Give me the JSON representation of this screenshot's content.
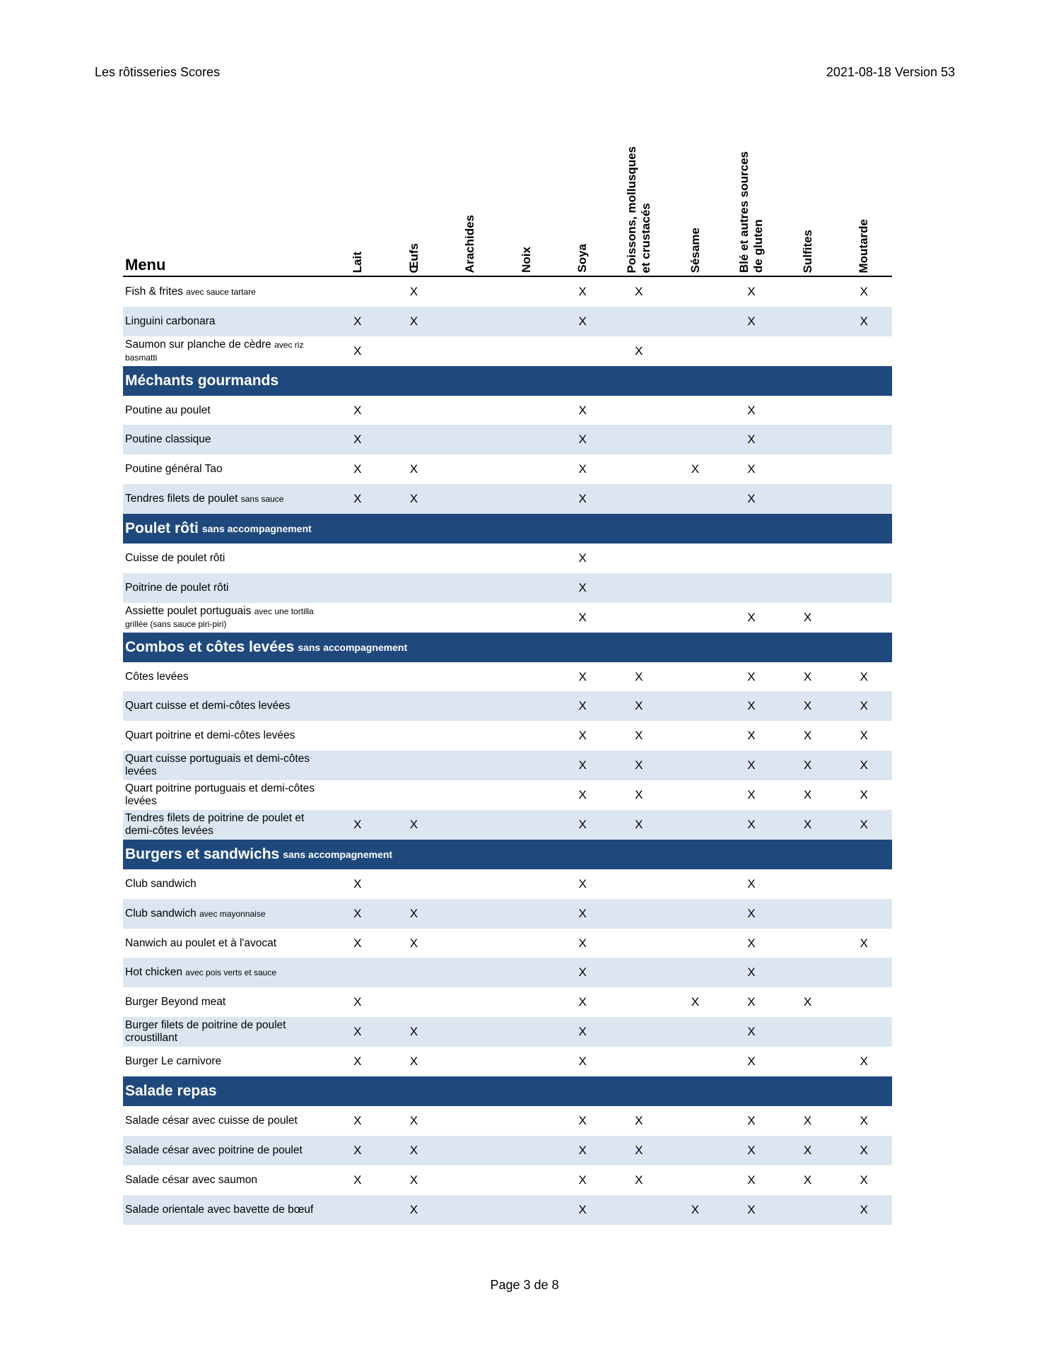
{
  "page_header": {
    "left": "Les rôtisseries Scores",
    "right": "2021-08-18 Version 53"
  },
  "footer": {
    "page": "Page 3 de 8"
  },
  "table": {
    "menu_label": "Menu",
    "columns": [
      "Lait",
      "Œufs",
      "Arachides",
      "Noix",
      "Soya",
      "Poissons, mollusques\net crustacés",
      "Sésame",
      "Blé et autres sources\nde gluten",
      "Sulfites",
      "Moutarde"
    ],
    "colors": {
      "section_bg": "#1f497d",
      "alt_row_bg": "#dce6f1"
    },
    "groups": [
      {
        "title": "",
        "subtitle": "",
        "rows": [
          {
            "name": "Fish & frites",
            "note": "avec sauce tartare",
            "marks": [
              "",
              "X",
              "",
              "",
              "X",
              "X",
              "",
              "X",
              "",
              "X"
            ]
          },
          {
            "name": "Linguini carbonara",
            "note": "",
            "marks": [
              "X",
              "X",
              "",
              "",
              "X",
              "",
              "",
              "X",
              "",
              "X"
            ]
          },
          {
            "name": "Saumon sur planche de cèdre",
            "note": "avec riz basmatti",
            "marks": [
              "X",
              "",
              "",
              "",
              "",
              "X",
              "",
              "",
              "",
              ""
            ]
          }
        ]
      },
      {
        "title": "Méchants gourmands",
        "subtitle": "",
        "rows": [
          {
            "name": "Poutine au poulet",
            "note": "",
            "marks": [
              "X",
              "",
              "",
              "",
              "X",
              "",
              "",
              "X",
              "",
              ""
            ]
          },
          {
            "name": "Poutine classique",
            "note": "",
            "marks": [
              "X",
              "",
              "",
              "",
              "X",
              "",
              "",
              "X",
              "",
              ""
            ]
          },
          {
            "name": "Poutine général Tao",
            "note": "",
            "marks": [
              "X",
              "X",
              "",
              "",
              "X",
              "",
              "X",
              "X",
              "",
              ""
            ]
          },
          {
            "name": "Tendres filets de poulet",
            "note": "sans sauce",
            "marks": [
              "X",
              "X",
              "",
              "",
              "X",
              "",
              "",
              "X",
              "",
              ""
            ]
          }
        ]
      },
      {
        "title": "Poulet rôti",
        "subtitle": "sans accompagnement",
        "rows": [
          {
            "name": "Cuisse de poulet rôti",
            "note": "",
            "marks": [
              "",
              "",
              "",
              "",
              "X",
              "",
              "",
              "",
              "",
              ""
            ]
          },
          {
            "name": "Poitrine de poulet rôti",
            "note": "",
            "marks": [
              "",
              "",
              "",
              "",
              "X",
              "",
              "",
              "",
              "",
              ""
            ]
          },
          {
            "name": "Assiette poulet portuguais",
            "note": "avec une tortilla grillée (sans sauce piri-piri)",
            "marks": [
              "",
              "",
              "",
              "",
              "X",
              "",
              "",
              "X",
              "X",
              ""
            ]
          }
        ]
      },
      {
        "title": "Combos et côtes levées",
        "subtitle": "sans accompagnement",
        "rows": [
          {
            "name": "Côtes levées",
            "note": "",
            "marks": [
              "",
              "",
              "",
              "",
              "X",
              "X",
              "",
              "X",
              "X",
              "X"
            ]
          },
          {
            "name": "Quart cuisse et demi-côtes levées",
            "note": "",
            "marks": [
              "",
              "",
              "",
              "",
              "X",
              "X",
              "",
              "X",
              "X",
              "X"
            ]
          },
          {
            "name": "Quart poitrine et demi-côtes levées",
            "note": "",
            "marks": [
              "",
              "",
              "",
              "",
              "X",
              "X",
              "",
              "X",
              "X",
              "X"
            ]
          },
          {
            "name": "Quart cuisse portuguais et demi-côtes levées",
            "note": "",
            "marks": [
              "",
              "",
              "",
              "",
              "X",
              "X",
              "",
              "X",
              "X",
              "X"
            ]
          },
          {
            "name": "Quart poitrine portuguais et demi-côtes levées",
            "note": "",
            "marks": [
              "",
              "",
              "",
              "",
              "X",
              "X",
              "",
              "X",
              "X",
              "X"
            ]
          },
          {
            "name": "Tendres filets de poitrine de poulet et demi-côtes levées",
            "note": "",
            "marks": [
              "X",
              "X",
              "",
              "",
              "X",
              "X",
              "",
              "X",
              "X",
              "X"
            ]
          }
        ]
      },
      {
        "title": "Burgers et sandwichs",
        "subtitle": "sans accompagnement",
        "rows": [
          {
            "name": "Club sandwich",
            "note": "",
            "marks": [
              "X",
              "",
              "",
              "",
              "X",
              "",
              "",
              "X",
              "",
              ""
            ]
          },
          {
            "name": "Club sandwich",
            "note": "avec mayonnaise",
            "marks": [
              "X",
              "X",
              "",
              "",
              "X",
              "",
              "",
              "X",
              "",
              ""
            ]
          },
          {
            "name": "Nanwich au poulet et à l'avocat",
            "note": "",
            "marks": [
              "X",
              "X",
              "",
              "",
              "X",
              "",
              "",
              "X",
              "",
              "X"
            ]
          },
          {
            "name": "Hot chicken",
            "note": "avec pois verts et sauce",
            "marks": [
              "",
              "",
              "",
              "",
              "X",
              "",
              "",
              "X",
              "",
              ""
            ]
          },
          {
            "name": "Burger Beyond meat",
            "note": "",
            "marks": [
              "X",
              "",
              "",
              "",
              "X",
              "",
              "X",
              "X",
              "X",
              ""
            ]
          },
          {
            "name": "Burger filets de poitrine de poulet croustillant",
            "note": "",
            "marks": [
              "X",
              "X",
              "",
              "",
              "X",
              "",
              "",
              "X",
              "",
              ""
            ]
          },
          {
            "name": "Burger Le carnivore",
            "note": "",
            "marks": [
              "X",
              "X",
              "",
              "",
              "X",
              "",
              "",
              "X",
              "",
              "X"
            ]
          }
        ]
      },
      {
        "title": "Salade repas",
        "subtitle": "",
        "rows": [
          {
            "name": "Salade césar avec cuisse de poulet",
            "note": "",
            "marks": [
              "X",
              "X",
              "",
              "",
              "X",
              "X",
              "",
              "X",
              "X",
              "X"
            ]
          },
          {
            "name": "Salade césar avec poitrine de poulet",
            "note": "",
            "marks": [
              "X",
              "X",
              "",
              "",
              "X",
              "X",
              "",
              "X",
              "X",
              "X"
            ]
          },
          {
            "name": "Salade césar avec saumon",
            "note": "",
            "marks": [
              "X",
              "X",
              "",
              "",
              "X",
              "X",
              "",
              "X",
              "X",
              "X"
            ]
          },
          {
            "name": "Salade orientale avec bavette de bœuf",
            "note": "",
            "marks": [
              "",
              "X",
              "",
              "",
              "X",
              "",
              "X",
              "X",
              "",
              "X"
            ]
          }
        ]
      }
    ]
  }
}
